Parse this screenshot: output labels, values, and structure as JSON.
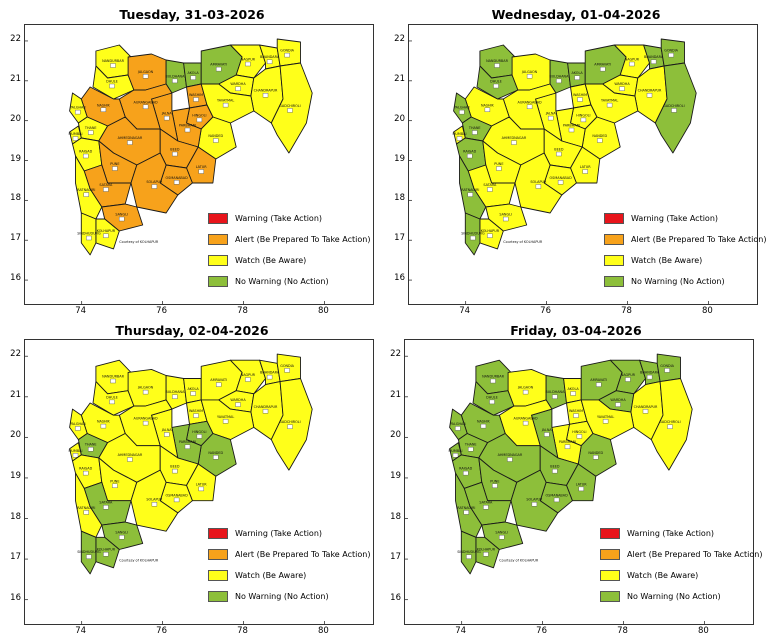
{
  "colors": {
    "warning": "#e8141b",
    "alert": "#f7a21b",
    "watch": "#ffff1a",
    "no_warning": "#8dbf3a",
    "border": "#1a1a1a"
  },
  "legend": [
    {
      "key": "warning",
      "label": "Warning (Take Action)"
    },
    {
      "key": "alert",
      "label": "Alert (Be Prepared To Take Action)"
    },
    {
      "key": "watch",
      "label": "Watch (Be Aware)"
    },
    {
      "key": "no_warning",
      "label": "No Warning (No Action)"
    }
  ],
  "axes": {
    "x_ticks": [
      "74",
      "76",
      "78",
      "80"
    ],
    "y_ticks": [
      "22",
      "21",
      "20",
      "19",
      "18",
      "17",
      "16"
    ],
    "x_range": [
      72.6,
      81.2
    ],
    "y_range": [
      15.4,
      22.4
    ]
  },
  "footnote": "Courtesy of KOLHAPUR",
  "panels": [
    {
      "title": "Tuesday, 31-03-2026",
      "districts": {
        "palghar": "watch",
        "thane": "watch",
        "mumbai": "watch",
        "raigad": "watch",
        "ratnagiri": "watch",
        "sindhudurg": "watch",
        "kolhapur": "watch",
        "sangli": "alert",
        "satara": "alert",
        "pune": "alert",
        "solapur": "alert",
        "ahmednagar": "alert",
        "nashik": "alert",
        "dhule": "watch",
        "nandurbar": "watch",
        "jalgaon": "alert",
        "aurangabad": "alert",
        "jalna": "alert",
        "beed": "alert",
        "osmanabad": "alert",
        "latur": "alert",
        "nanded": "watch",
        "parbhani": "alert",
        "hingoli": "alert",
        "buldhana": "no_warning",
        "akola": "no_warning",
        "washim": "alert",
        "amravati": "no_warning",
        "yavatmal": "watch",
        "wardha": "watch",
        "nagpur": "watch",
        "bhandara": "watch",
        "gondia": "watch",
        "chandrapur": "watch",
        "gadchiroli": "watch"
      }
    },
    {
      "title": "Wednesday, 01-04-2026",
      "districts": {
        "palghar": "no_warning",
        "thane": "no_warning",
        "mumbai": "watch",
        "raigad": "no_warning",
        "ratnagiri": "no_warning",
        "sindhudurg": "no_warning",
        "kolhapur": "watch",
        "sangli": "watch",
        "satara": "watch",
        "pune": "watch",
        "solapur": "watch",
        "ahmednagar": "watch",
        "nashik": "watch",
        "dhule": "no_warning",
        "nandurbar": "no_warning",
        "jalgaon": "watch",
        "aurangabad": "watch",
        "jalna": "watch",
        "beed": "watch",
        "osmanabad": "watch",
        "latur": "watch",
        "nanded": "watch",
        "parbhani": "watch",
        "hingoli": "watch",
        "buldhana": "no_warning",
        "akola": "no_warning",
        "washim": "watch",
        "amravati": "no_warning",
        "yavatmal": "watch",
        "wardha": "watch",
        "nagpur": "watch",
        "bhandara": "no_warning",
        "gondia": "no_warning",
        "chandrapur": "watch",
        "gadchiroli": "no_warning"
      }
    },
    {
      "title": "Thursday, 02-04-2026",
      "districts": {
        "palghar": "watch",
        "thane": "no_warning",
        "mumbai": "watch",
        "raigad": "watch",
        "ratnagiri": "watch",
        "sindhudurg": "no_warning",
        "kolhapur": "no_warning",
        "sangli": "no_warning",
        "satara": "no_warning",
        "pune": "watch",
        "solapur": "watch",
        "ahmednagar": "watch",
        "nashik": "watch",
        "dhule": "watch",
        "nandurbar": "watch",
        "jalgaon": "watch",
        "aurangabad": "watch",
        "jalna": "watch",
        "beed": "watch",
        "osmanabad": "watch",
        "latur": "watch",
        "nanded": "no_warning",
        "parbhani": "no_warning",
        "hingoli": "no_warning",
        "buldhana": "watch",
        "akola": "watch",
        "washim": "watch",
        "amravati": "watch",
        "yavatmal": "watch",
        "wardha": "watch",
        "nagpur": "watch",
        "bhandara": "watch",
        "gondia": "watch",
        "chandrapur": "watch",
        "gadchiroli": "watch"
      }
    },
    {
      "title": "Friday, 03-04-2026",
      "districts": {
        "palghar": "no_warning",
        "thane": "no_warning",
        "mumbai": "no_warning",
        "raigad": "no_warning",
        "ratnagiri": "no_warning",
        "sindhudurg": "no_warning",
        "kolhapur": "no_warning",
        "sangli": "no_warning",
        "satara": "no_warning",
        "pune": "no_warning",
        "solapur": "no_warning",
        "ahmednagar": "no_warning",
        "nashik": "no_warning",
        "dhule": "no_warning",
        "nandurbar": "no_warning",
        "jalgaon": "watch",
        "aurangabad": "watch",
        "jalna": "no_warning",
        "beed": "no_warning",
        "osmanabad": "no_warning",
        "latur": "no_warning",
        "nanded": "no_warning",
        "parbhani": "watch",
        "hingoli": "watch",
        "buldhana": "no_warning",
        "akola": "watch",
        "washim": "watch",
        "amravati": "no_warning",
        "yavatmal": "watch",
        "wardha": "no_warning",
        "nagpur": "no_warning",
        "bhandara": "no_warning",
        "gondia": "no_warning",
        "chandrapur": "watch",
        "gadchiroli": "watch"
      }
    }
  ]
}
